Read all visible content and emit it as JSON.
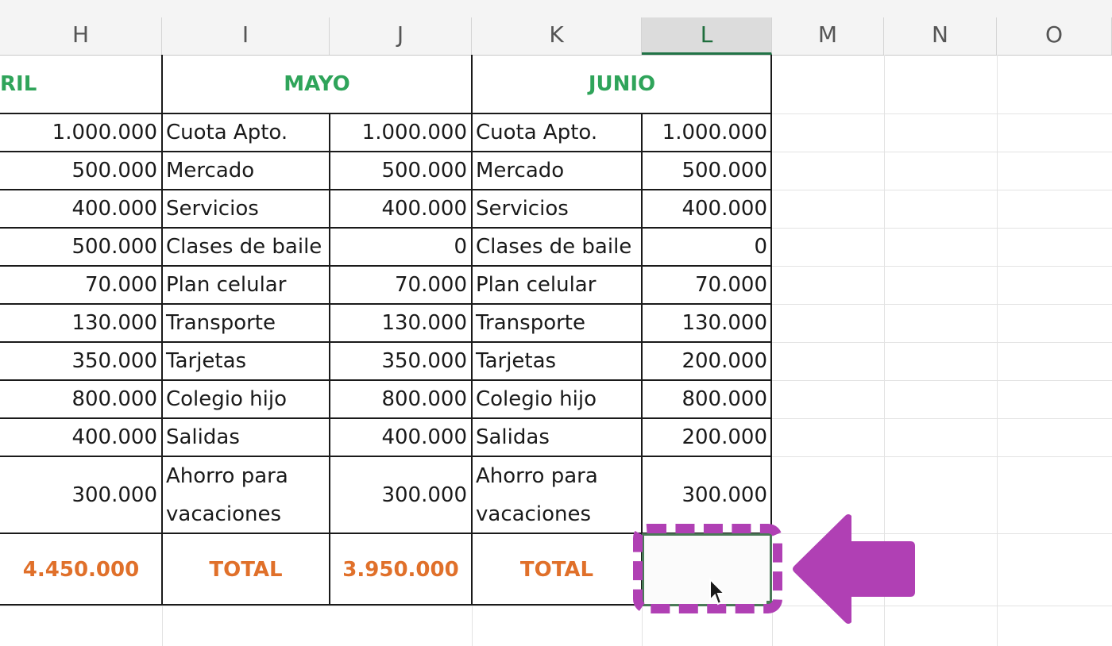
{
  "columns": [
    "H",
    "I",
    "J",
    "K",
    "L",
    "M",
    "N",
    "O"
  ],
  "selected_column": "L",
  "months": [
    "RIL",
    "MAYO",
    "JUNIO"
  ],
  "rows": [
    {
      "h": "1.000.000",
      "i": "Cuota Apto.",
      "j": "1.000.000",
      "k": "Cuota Apto.",
      "l": "1.000.000"
    },
    {
      "h": "500.000",
      "i": "Mercado",
      "j": "500.000",
      "k": "Mercado",
      "l": "500.000"
    },
    {
      "h": "400.000",
      "i": "Servicios",
      "j": "400.000",
      "k": "Servicios",
      "l": "400.000"
    },
    {
      "h": "500.000",
      "i": "Clases de baile",
      "j": "0",
      "k": "Clases de baile",
      "l": "0"
    },
    {
      "h": "70.000",
      "i": "Plan celular",
      "j": "70.000",
      "k": "Plan celular",
      "l": "70.000"
    },
    {
      "h": "130.000",
      "i": "Transporte",
      "j": "130.000",
      "k": "Transporte",
      "l": "130.000"
    },
    {
      "h": "350.000",
      "i": "Tarjetas",
      "j": "350.000",
      "k": "Tarjetas",
      "l": "200.000"
    },
    {
      "h": "800.000",
      "i": "Colegio hijo",
      "j": "800.000",
      "k": "Colegio hijo",
      "l": "800.000"
    },
    {
      "h": "400.000",
      "i": "Salidas",
      "j": "400.000",
      "k": "Salidas",
      "l": "200.000"
    },
    {
      "h": "300.000",
      "i": "Ahorro para vacaciones",
      "j": "300.000",
      "k": "Ahorro para vacaciones",
      "l": "300.000"
    }
  ],
  "totals": {
    "h": "4.450.000",
    "i": "TOTAL",
    "j": "3.950.000",
    "k": "TOTAL",
    "l": ""
  },
  "colors": {
    "month_header": "#2fa45a",
    "total": "#e0702a",
    "highlight": "#b040b4",
    "selection": "#4a7a57"
  },
  "icons": {
    "pointer": "mouse-pointer-icon",
    "callout": "arrow-left-icon"
  }
}
